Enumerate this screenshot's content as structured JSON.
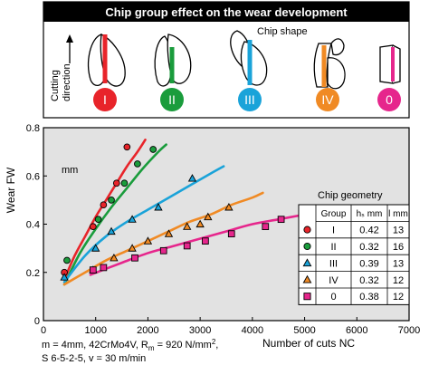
{
  "header": {
    "title": "Chip group effect on the wear development",
    "chip_shape_label": "Chip shape",
    "cutting_direction_label": "Cutting direction",
    "cutting_direction_line1": "Cutting",
    "cutting_direction_line2": "direction"
  },
  "chip_groups": [
    {
      "id": "I",
      "color": "#e8242a"
    },
    {
      "id": "II",
      "color": "#1a9c3c"
    },
    {
      "id": "III",
      "color": "#1aa3d9"
    },
    {
      "id": "IV",
      "color": "#f08a24"
    },
    {
      "id": "0",
      "color": "#e6268c"
    }
  ],
  "chart_data": {
    "type": "scatter",
    "ylabel": "Wear FW",
    "yunit": "mm",
    "xlabel": "Number of cuts NC",
    "xlim": [
      0,
      7000
    ],
    "ylim": [
      0,
      0.8
    ],
    "xticks": [
      "0",
      "1000",
      "2000",
      "3000",
      "4000",
      "5000",
      "6000",
      "7000"
    ],
    "yticks": [
      "0",
      "0.2",
      "0.4",
      "0.6",
      "0.8"
    ],
    "grid": false,
    "series": [
      {
        "name": "I",
        "marker": "circle",
        "color": "#e8242a",
        "x": [
          400,
          950,
          1150,
          1400,
          1600
        ],
        "y": [
          0.2,
          0.39,
          0.48,
          0.57,
          0.72
        ],
        "fit_x": [
          400,
          600,
          800,
          1000,
          1200,
          1400,
          1600,
          1800,
          1950
        ],
        "fit_y": [
          0.17,
          0.27,
          0.35,
          0.43,
          0.5,
          0.57,
          0.64,
          0.7,
          0.75
        ]
      },
      {
        "name": "II",
        "marker": "circle",
        "color": "#1a9c3c",
        "x": [
          450,
          1050,
          1300,
          1550,
          1800,
          2100
        ],
        "y": [
          0.25,
          0.42,
          0.5,
          0.57,
          0.65,
          0.71
        ],
        "fit_x": [
          400,
          700,
          1000,
          1300,
          1600,
          1900,
          2200,
          2350
        ],
        "fit_y": [
          0.15,
          0.28,
          0.38,
          0.47,
          0.55,
          0.63,
          0.7,
          0.73
        ]
      },
      {
        "name": "III",
        "marker": "triangle",
        "color": "#1aa3d9",
        "x": [
          400,
          1000,
          1300,
          1700,
          2200,
          2850
        ],
        "y": [
          0.18,
          0.3,
          0.37,
          0.42,
          0.47,
          0.59
        ],
        "fit_x": [
          400,
          800,
          1200,
          1600,
          2000,
          2400,
          2800,
          3200,
          3450
        ],
        "fit_y": [
          0.16,
          0.27,
          0.35,
          0.41,
          0.46,
          0.51,
          0.56,
          0.61,
          0.64
        ]
      },
      {
        "name": "IV",
        "marker": "triangle",
        "color": "#f08a24",
        "x": [
          950,
          1350,
          1700,
          2000,
          2400,
          2750,
          3000,
          3150,
          3550
        ],
        "y": [
          0.21,
          0.26,
          0.3,
          0.33,
          0.36,
          0.39,
          0.4,
          0.43,
          0.47
        ],
        "fit_x": [
          400,
          800,
          1200,
          1600,
          2000,
          2400,
          2800,
          3200,
          3600,
          4000,
          4200
        ],
        "fit_y": [
          0.15,
          0.2,
          0.25,
          0.29,
          0.33,
          0.37,
          0.41,
          0.44,
          0.48,
          0.51,
          0.53
        ]
      },
      {
        "name": "0",
        "marker": "square",
        "color": "#e6268c",
        "x": [
          950,
          1150,
          1750,
          2300,
          2750,
          3100,
          3600,
          4250,
          4550,
          5050,
          5450
        ],
        "y": [
          0.21,
          0.22,
          0.26,
          0.29,
          0.31,
          0.33,
          0.36,
          0.39,
          0.42,
          0.45,
          0.46
        ],
        "fit_x": [
          900,
          1500,
          2000,
          2500,
          3000,
          3500,
          4000,
          4500,
          5000,
          5500,
          6000
        ],
        "fit_y": [
          0.19,
          0.24,
          0.28,
          0.31,
          0.34,
          0.37,
          0.4,
          0.42,
          0.44,
          0.46,
          0.47
        ]
      }
    ]
  },
  "geometry_table": {
    "title": "Chip geometry",
    "headers": [
      "Group",
      "hₛ mm",
      "l mm"
    ],
    "rows": [
      {
        "group": "I",
        "hs": "0.42",
        "l": "13"
      },
      {
        "group": "II",
        "hs": "0.32",
        "l": "16"
      },
      {
        "group": "III",
        "hs": "0.39",
        "l": "13"
      },
      {
        "group": "IV",
        "hs": "0.32",
        "l": "12"
      },
      {
        "group": "0",
        "hs": "0.38",
        "l": "12"
      }
    ]
  },
  "conditions": {
    "line1": "m = 4mm, 42CrMo4V, Rm = 920 N/mm², S 6-5-2-5, v = 30 m/min",
    "line1_a": "m = 4mm, 42CrMo4V, R",
    "line1_sub": "m",
    "line1_b": " = 920 N/mm",
    "line1_sup": "2",
    "line1_c": ",",
    "line2": "S 6-5-2-5, v = 30 m/min"
  }
}
